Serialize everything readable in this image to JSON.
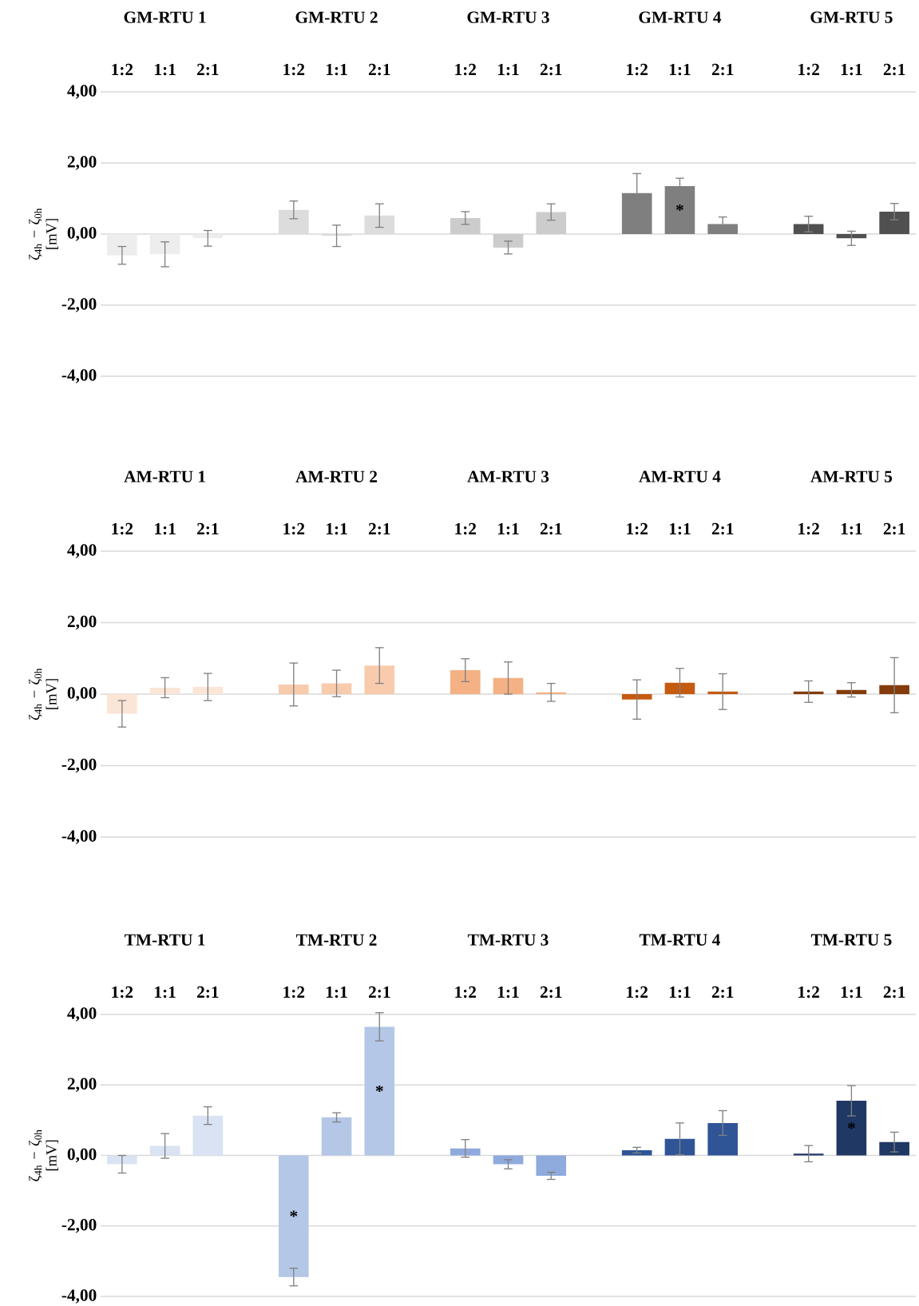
{
  "chart_data": [
    {
      "type": "bar",
      "ylabel": "ζ$_{4h}$ − ζ$_{0h}$ [mV]",
      "annotations": [
        "GM-RTU 1",
        "GM-RTU 2",
        "GM-RTU 3",
        "GM-RTU 4",
        "GM-RTU 5"
      ],
      "categories": [
        "1:2",
        "1:1",
        "2:1",
        "1:2",
        "1:1",
        "2:1",
        "1:2",
        "1:1",
        "2:1",
        "1:2",
        "1:1",
        "2:1",
        "1:2",
        "1:1",
        "2:1"
      ],
      "values": [
        -0.6,
        -0.57,
        -0.12,
        0.68,
        -0.05,
        0.52,
        0.45,
        -0.38,
        0.62,
        1.15,
        1.35,
        0.28,
        0.28,
        -0.12,
        0.63
      ],
      "errors": [
        0.25,
        0.35,
        0.22,
        0.25,
        0.3,
        0.33,
        0.18,
        0.18,
        0.23,
        0.55,
        0.22,
        0.2,
        0.22,
        0.2,
        0.23
      ],
      "colors": [
        "#ededed",
        "#ededed",
        "#ededed",
        "#dcdcdc",
        "#dcdcdc",
        "#dcdcdc",
        "#cccccc",
        "#cccccc",
        "#cccccc",
        "#7f7f7f",
        "#7f7f7f",
        "#7f7f7f",
        "#505050",
        "#505050",
        "#505050"
      ],
      "value_labels": [
        null,
        null,
        null,
        null,
        null,
        null,
        null,
        null,
        null,
        null,
        "*",
        null,
        null,
        null,
        null
      ],
      "ylim": [
        -4,
        4
      ],
      "yticks": [
        {
          "value": -4,
          "label": "-4,00"
        },
        {
          "value": -2,
          "label": "-2,00"
        },
        {
          "value": 0,
          "label": "0,00"
        },
        {
          "value": 2,
          "label": "2,00"
        },
        {
          "value": 4,
          "label": "4,00"
        }
      ],
      "grid": "y"
    },
    {
      "type": "bar",
      "ylabel": "ζ$_{4h}$ − ζ$_{0h}$ [mV]",
      "annotations": [
        "AM-RTU 1",
        "AM-RTU 2",
        "AM-RTU 3",
        "AM-RTU 4",
        "AM-RTU 5"
      ],
      "categories": [
        "1:2",
        "1:1",
        "2:1",
        "1:2",
        "1:1",
        "2:1",
        "1:2",
        "1:1",
        "2:1",
        "1:2",
        "1:1",
        "2:1",
        "1:2",
        "1:1",
        "2:1"
      ],
      "values": [
        -0.55,
        0.18,
        0.2,
        0.27,
        0.3,
        0.8,
        0.67,
        0.45,
        0.05,
        -0.15,
        0.32,
        0.07,
        0.07,
        0.12,
        0.25
      ],
      "errors": [
        0.37,
        0.28,
        0.38,
        0.6,
        0.37,
        0.5,
        0.32,
        0.45,
        0.25,
        0.55,
        0.4,
        0.5,
        0.3,
        0.2,
        0.77
      ],
      "colors": [
        "#fbe5d6",
        "#fbe5d6",
        "#fbe5d6",
        "#f8cbad",
        "#f8cbad",
        "#f8cbad",
        "#f4b183",
        "#f4b183",
        "#f4b183",
        "#c55a11",
        "#c55a11",
        "#c55a11",
        "#843c0c",
        "#843c0c",
        "#843c0c"
      ],
      "ylim": [
        -4,
        4
      ],
      "yticks": [
        {
          "value": -4,
          "label": "-4,00"
        },
        {
          "value": -2,
          "label": "-2,00"
        },
        {
          "value": 0,
          "label": "0,00"
        },
        {
          "value": 2,
          "label": "2,00"
        },
        {
          "value": 4,
          "label": "4,00"
        }
      ],
      "grid": "y"
    },
    {
      "type": "bar",
      "ylabel": "ζ$_{4h}$ − ζ$_{0h}$ [mV]",
      "annotations": [
        "TM-RTU 1",
        "TM-RTU 2",
        "TM-RTU 3",
        "TM-RTU 4",
        "TM-RTU 5"
      ],
      "categories": [
        "1:2",
        "1:1",
        "2:1",
        "1:2",
        "1:1",
        "2:1",
        "1:2",
        "1:1",
        "2:1",
        "1:2",
        "1:1",
        "2:1",
        "1:2",
        "1:1",
        "2:1"
      ],
      "values": [
        -0.25,
        0.27,
        1.13,
        -3.45,
        1.08,
        3.65,
        0.2,
        -0.25,
        -0.58,
        0.15,
        0.47,
        0.92,
        0.05,
        1.55,
        0.38
      ],
      "errors": [
        0.25,
        0.35,
        0.25,
        0.25,
        0.13,
        0.4,
        0.25,
        0.13,
        0.1,
        0.08,
        0.45,
        0.35,
        0.23,
        0.43,
        0.28
      ],
      "colors": [
        "#dae3f3",
        "#dae3f3",
        "#dae3f3",
        "#b4c7e7",
        "#b4c7e7",
        "#b4c7e7",
        "#8faadc",
        "#8faadc",
        "#8faadc",
        "#2f5597",
        "#2f5597",
        "#2f5597",
        "#203864",
        "#203864",
        "#203864"
      ],
      "value_labels": [
        null,
        null,
        null,
        "*",
        null,
        "*",
        null,
        null,
        null,
        null,
        null,
        null,
        null,
        "*",
        null
      ],
      "ylim": [
        -4,
        4
      ],
      "yticks": [
        {
          "value": -4,
          "label": "-4,00"
        },
        {
          "value": -2,
          "label": "-2,00"
        },
        {
          "value": 0,
          "label": "0,00"
        },
        {
          "value": 2,
          "label": "2,00"
        },
        {
          "value": 4,
          "label": "4,00"
        }
      ],
      "grid": "y"
    }
  ]
}
